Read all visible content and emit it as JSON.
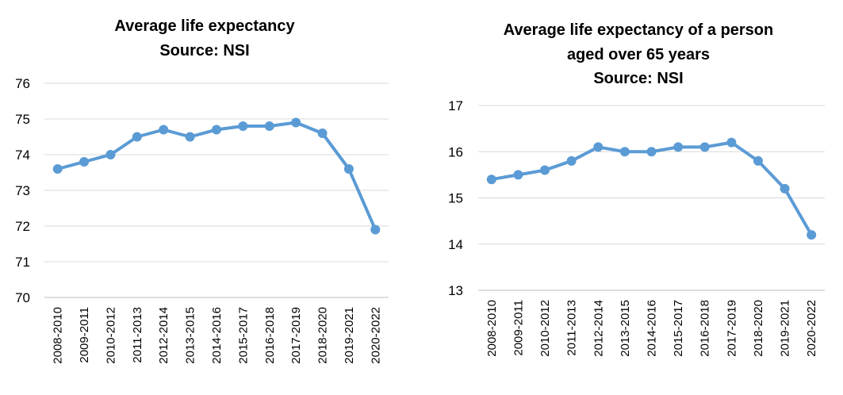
{
  "chart_data": [
    {
      "type": "line",
      "title": "Average life expectancy",
      "subtitle": "Source: NSI",
      "xlabel": "",
      "ylabel": "",
      "categories": [
        "2008-2010",
        "2009-2011",
        "2010-2012",
        "2011-2013",
        "2012-2014",
        "2013-2015",
        "2014-2016",
        "2015-2017",
        "2016-2018",
        "2017-2019",
        "2018-2020",
        "2019-2021",
        "2020-2022"
      ],
      "series": [
        {
          "values": [
            73.6,
            73.8,
            74.0,
            74.5,
            74.7,
            74.5,
            74.7,
            74.8,
            74.8,
            74.9,
            74.6,
            73.6,
            71.9
          ]
        }
      ],
      "ylim": [
        70,
        76
      ],
      "yticks": [
        70,
        71,
        72,
        73,
        74,
        75,
        76
      ],
      "grid": true,
      "line_color": "#5b9bd5"
    },
    {
      "type": "line",
      "title": "Average life expectancy of a person aged over 65 years",
      "subtitle": "Source: NSI",
      "xlabel": "",
      "ylabel": "",
      "categories": [
        "2008-2010",
        "2009-2011",
        "2010-2012",
        "2011-2013",
        "2012-2014",
        "2013-2015",
        "2014-2016",
        "2015-2017",
        "2016-2018",
        "2017-2019",
        "2018-2020",
        "2019-2021",
        "2020-2022"
      ],
      "series": [
        {
          "values": [
            15.4,
            15.5,
            15.6,
            15.8,
            16.1,
            16.0,
            16.0,
            16.1,
            16.1,
            16.2,
            15.8,
            15.2,
            14.2
          ]
        }
      ],
      "ylim": [
        13,
        17
      ],
      "yticks": [
        13,
        14,
        15,
        16,
        17
      ],
      "grid": true,
      "line_color": "#5b9bd5"
    }
  ]
}
